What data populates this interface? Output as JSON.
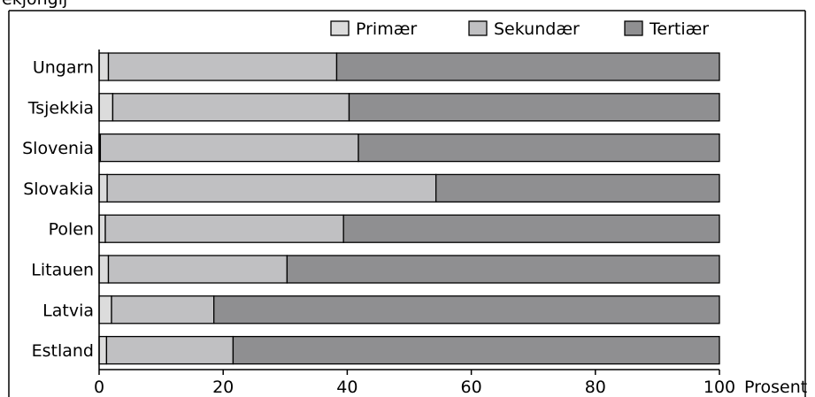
{
  "header": {
    "partial_text": "ekjonglj"
  },
  "colors": {
    "primaer": "#dcdcdc",
    "sekundaer": "#c0c0c2",
    "tertiaer": "#8f8f91"
  },
  "chart_data": {
    "type": "bar",
    "orientation": "horizontal",
    "stacked": true,
    "categories": [
      "Ungarn",
      "Tsjekkia",
      "Slovenia",
      "Slovakia",
      "Polen",
      "Litauen",
      "Latvia",
      "Estland"
    ],
    "series": [
      {
        "name": "Primær",
        "color": "#dcdcdc",
        "values": [
          1.5,
          2.2,
          0.2,
          1.3,
          1.0,
          1.5,
          2.0,
          1.2
        ]
      },
      {
        "name": "Sekundær",
        "color": "#c0c0c2",
        "values": [
          36.8,
          38.1,
          41.6,
          53.0,
          38.4,
          28.8,
          16.5,
          20.4
        ]
      },
      {
        "name": "Tertiær",
        "color": "#8f8f91",
        "values": [
          61.7,
          59.7,
          58.2,
          45.7,
          60.6,
          69.7,
          81.5,
          78.4
        ]
      }
    ],
    "xlim": [
      0,
      100
    ],
    "xticks": [
      "0",
      "20",
      "40",
      "60",
      "80",
      "100"
    ],
    "xlabel": "Prosent",
    "legend_position": "top-right",
    "grid": false
  }
}
